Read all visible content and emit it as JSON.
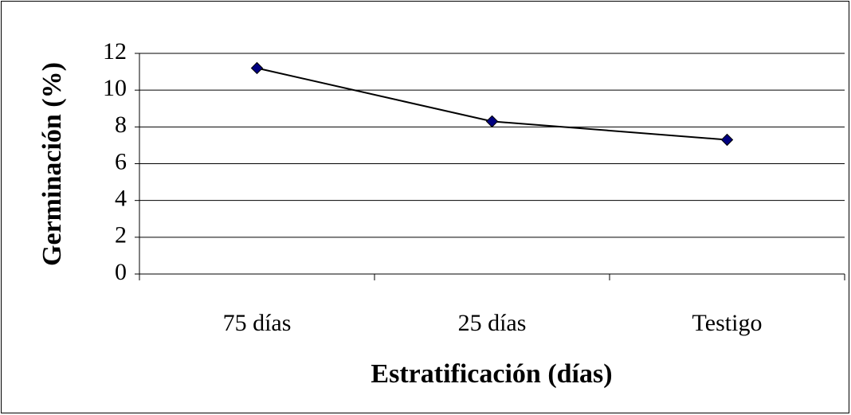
{
  "chart_data": {
    "type": "line",
    "categories": [
      "75 días",
      "25 días",
      "Testigo"
    ],
    "values": [
      11.2,
      8.3,
      7.3
    ],
    "color": "#000080",
    "line_color": "#000000",
    "xlabel": "Estratificación (días)",
    "ylabel": "Germinación (%)",
    "ylim": [
      0,
      12
    ],
    "yticks": [
      0,
      2,
      4,
      6,
      8,
      10,
      12
    ],
    "grid": true
  }
}
